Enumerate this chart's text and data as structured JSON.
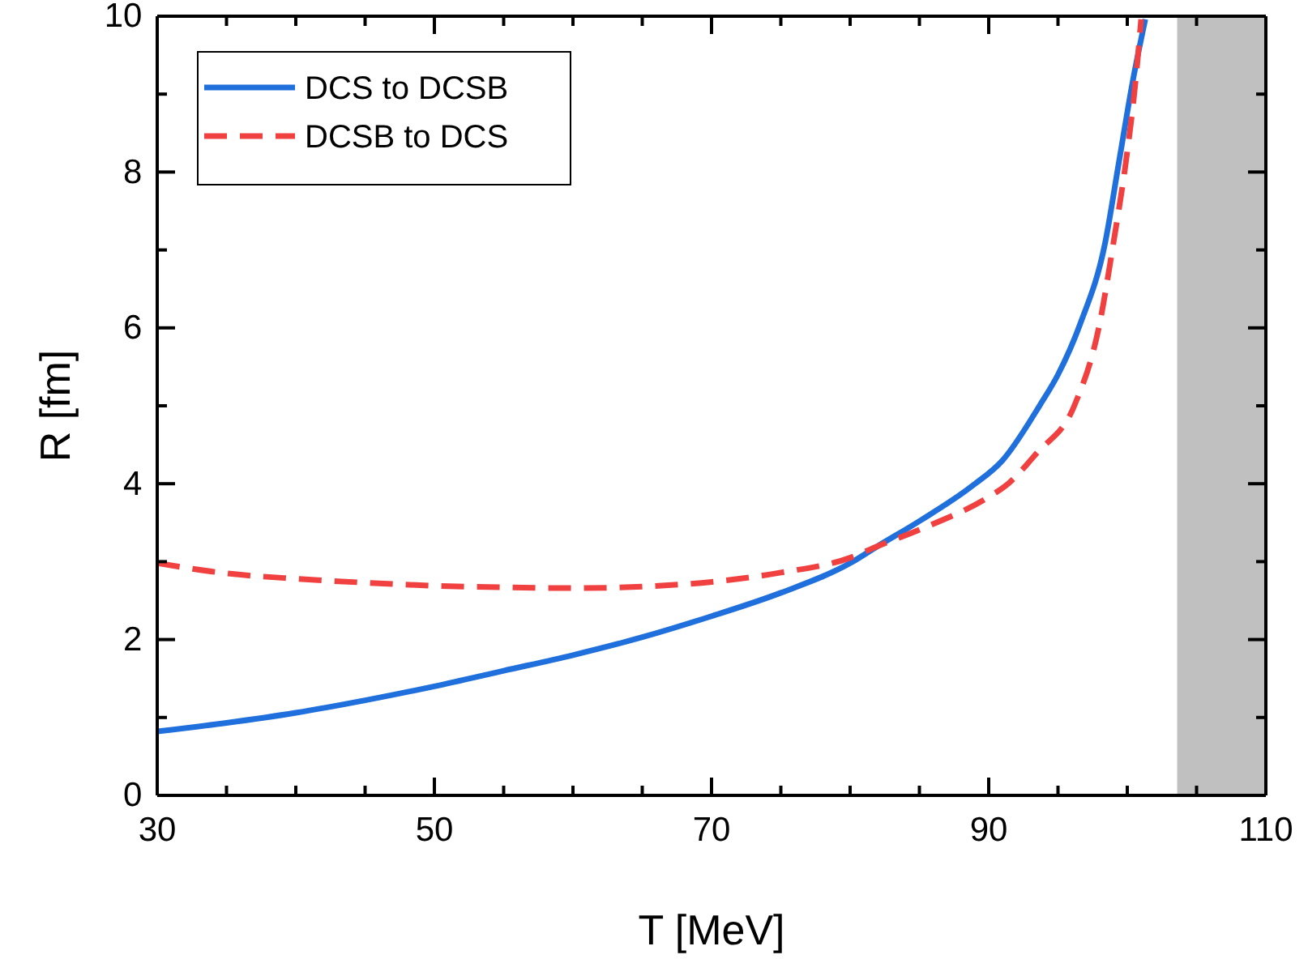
{
  "chart_data": {
    "type": "line",
    "xlabel": "T [MeV]",
    "ylabel": "R [fm]",
    "xlim": [
      30,
      110
    ],
    "ylim": [
      0,
      10
    ],
    "xticks": [
      30,
      {
        "value": 35,
        "label": null
      },
      {
        "value": 40,
        "label": null
      },
      {
        "value": 45,
        "label": null
      },
      50,
      {
        "value": 55,
        "label": null
      },
      {
        "value": 60,
        "label": null
      },
      {
        "value": 65,
        "label": null
      },
      70,
      {
        "value": 75,
        "label": null
      },
      {
        "value": 80,
        "label": null
      },
      {
        "value": 85,
        "label": null
      },
      90,
      {
        "value": 95,
        "label": null
      },
      {
        "value": 100,
        "label": null
      },
      {
        "value": 105,
        "label": null
      },
      110
    ],
    "yticks": [
      0,
      {
        "value": 1,
        "label": null
      },
      2,
      {
        "value": 3,
        "label": null
      },
      4,
      {
        "value": 5,
        "label": null
      },
      6,
      {
        "value": 7,
        "label": null
      },
      8,
      {
        "value": 9,
        "label": null
      },
      10
    ],
    "grid": false,
    "legend": "top left",
    "bands": [
      {
        "axis": "x",
        "from": 103.6,
        "to": 110,
        "color": "#c0c0c0"
      }
    ],
    "series": [
      {
        "name": "DCS to DCSB",
        "color": "#1f6fdc",
        "line_style": "solid",
        "x": [
          30,
          35,
          40,
          45,
          50,
          55,
          60,
          65,
          70,
          75,
          80,
          82,
          85,
          88.8,
          91,
          93.7,
          95,
          96.6,
          98.4,
          99.4,
          100.4,
          101.3
        ],
        "values": [
          0.82,
          0.93,
          1.06,
          1.22,
          1.4,
          1.6,
          1.8,
          2.03,
          2.3,
          2.6,
          2.98,
          3.2,
          3.52,
          3.97,
          4.3,
          5.01,
          5.4,
          6.05,
          7.09,
          8.13,
          9.17,
          9.96
        ]
      },
      {
        "name": "DCSB to DCS",
        "color": "#f04040",
        "line_style": "dashed",
        "x": [
          30,
          35,
          40,
          45,
          50,
          55,
          60,
          65,
          70,
          75,
          80,
          82,
          85,
          90,
          91.2,
          93.5,
          96.2,
          98,
          99,
          99.9,
          100.6,
          101
        ],
        "values": [
          2.98,
          2.85,
          2.78,
          2.73,
          2.69,
          2.67,
          2.66,
          2.68,
          2.74,
          2.86,
          3.05,
          3.2,
          3.41,
          3.83,
          3.97,
          4.4,
          5.01,
          6.05,
          7.09,
          8.13,
          9.17,
          9.96
        ]
      }
    ]
  }
}
